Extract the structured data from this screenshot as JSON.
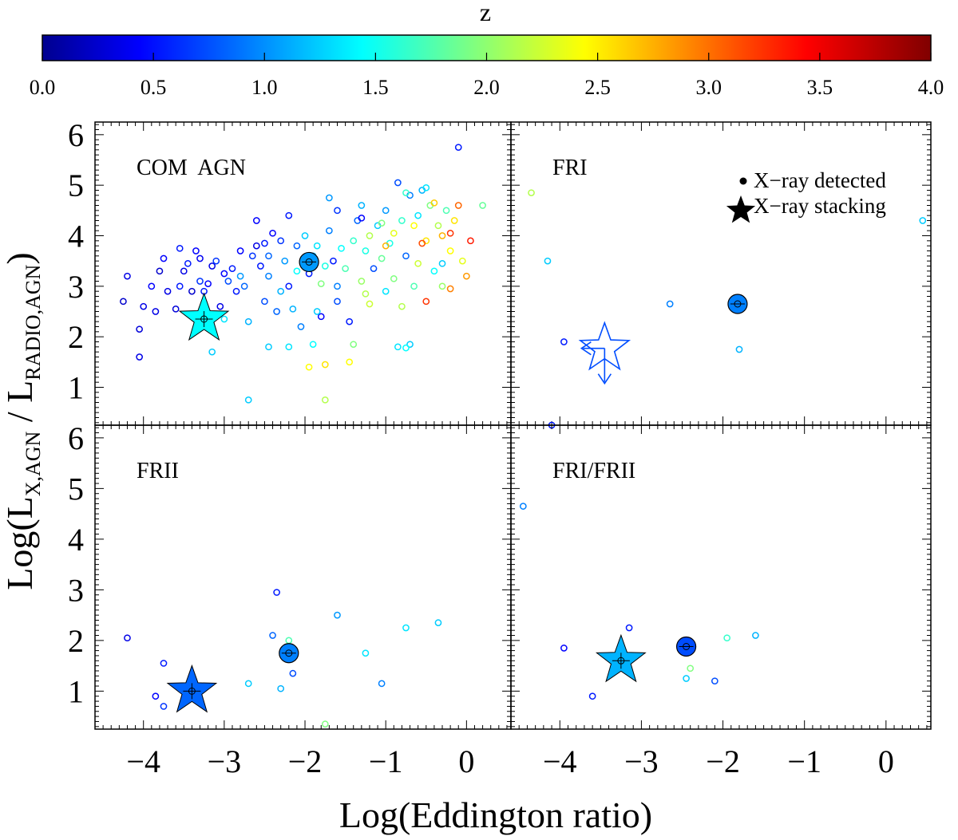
{
  "chart_data": {
    "type": "scatter",
    "colorbar": {
      "label": "z",
      "range": [
        0,
        4
      ],
      "ticks": [
        "0.0",
        "0.5",
        "1.0",
        "1.5",
        "2.0",
        "2.5",
        "3.0",
        "3.5",
        "4.0"
      ]
    },
    "xlabel": "Log(Eddington ratio)",
    "ylabel": "Log(L",
    "ylabel_sub1": "X,AGN",
    "ylabel_mid": " / L",
    "ylabel_sub2": "RADIO,AGN",
    "ylabel_end": ")",
    "xlim": [
      -4.6,
      0.55
    ],
    "ylim": [
      0.25,
      6.25
    ],
    "x_ticks": [
      "−4",
      "−3",
      "−2",
      "−1",
      "0"
    ],
    "y_ticks": [
      "1",
      "2",
      "3",
      "4",
      "5",
      "6"
    ],
    "legend": {
      "position": "top-right of FRI panel",
      "detected_label": "X−ray detected",
      "stacking_label": "X−ray stacking"
    },
    "panels": [
      {
        "name": "COM  AGN",
        "points": [
          [
            -4.2,
            3.2,
            0.4
          ],
          [
            -4.25,
            2.7,
            0.3
          ],
          [
            -4.0,
            2.6,
            0.4
          ],
          [
            -4.05,
            2.15,
            0.35
          ],
          [
            -4.05,
            1.6,
            0.4
          ],
          [
            -3.9,
            3.0,
            0.5
          ],
          [
            -3.85,
            2.5,
            0.4
          ],
          [
            -3.8,
            3.3,
            0.3
          ],
          [
            -3.75,
            3.55,
            0.5
          ],
          [
            -3.7,
            2.9,
            0.4
          ],
          [
            -3.6,
            2.55,
            0.35
          ],
          [
            -3.55,
            3.0,
            0.6
          ],
          [
            -3.5,
            3.3,
            0.4
          ],
          [
            -3.45,
            3.45,
            0.6
          ],
          [
            -3.4,
            2.9,
            0.3
          ],
          [
            -3.35,
            3.7,
            0.5
          ],
          [
            -3.3,
            3.55,
            0.45
          ],
          [
            -3.25,
            2.9,
            0.6
          ],
          [
            -3.2,
            3.05,
            0.5
          ],
          [
            -3.15,
            3.4,
            0.4
          ],
          [
            -3.1,
            3.5,
            0.7
          ],
          [
            -3.05,
            2.6,
            0.4
          ],
          [
            -3.0,
            3.25,
            0.5
          ],
          [
            -2.95,
            3.1,
            0.8
          ],
          [
            -2.9,
            3.35,
            0.6
          ],
          [
            -2.85,
            2.9,
            0.6
          ],
          [
            -2.8,
            3.7,
            0.5
          ],
          [
            -2.75,
            3.0,
            0.9
          ],
          [
            -2.7,
            2.3,
            1.2
          ],
          [
            -2.7,
            0.75,
            1.3
          ],
          [
            -2.65,
            3.6,
            0.7
          ],
          [
            -2.6,
            4.3,
            0.5
          ],
          [
            -2.55,
            3.4,
            0.6
          ],
          [
            -2.5,
            2.7,
            0.8
          ],
          [
            -2.5,
            3.85,
            0.6
          ],
          [
            -2.45,
            3.2,
            1.0
          ],
          [
            -2.4,
            4.05,
            0.5
          ],
          [
            -2.35,
            2.5,
            0.9
          ],
          [
            -2.3,
            3.9,
            0.7
          ],
          [
            -2.25,
            3.5,
            1.1
          ],
          [
            -2.2,
            3.0,
            0.6
          ],
          [
            -2.2,
            4.4,
            0.6
          ],
          [
            -2.15,
            2.55,
            1.2
          ],
          [
            -2.1,
            3.8,
            0.9
          ],
          [
            -2.05,
            2.2,
            1.0
          ],
          [
            -2.0,
            4.0,
            1.3
          ],
          [
            -1.95,
            3.25,
            0.6
          ],
          [
            -1.9,
            3.6,
            1.2
          ],
          [
            -1.9,
            1.85,
            1.5
          ],
          [
            -1.85,
            3.8,
            1.4
          ],
          [
            -1.8,
            2.4,
            0.5
          ],
          [
            -1.75,
            3.4,
            1.6
          ],
          [
            -1.7,
            4.1,
            1.0
          ],
          [
            -1.65,
            3.5,
            0.6
          ],
          [
            -1.6,
            2.7,
            0.8
          ],
          [
            -1.6,
            4.5,
            0.7
          ],
          [
            -1.55,
            3.75,
            1.5
          ],
          [
            -1.5,
            3.35,
            1.8
          ],
          [
            -1.45,
            2.3,
            0.6
          ],
          [
            -1.45,
            1.5,
            2.5
          ],
          [
            -1.4,
            3.9,
            1.7
          ],
          [
            -1.4,
            1.85,
            2.0
          ],
          [
            -1.35,
            4.3,
            0.9
          ],
          [
            -1.3,
            3.1,
            2.1
          ],
          [
            -1.3,
            4.6,
            1.2
          ],
          [
            -1.25,
            3.7,
            1.6
          ],
          [
            -1.2,
            2.65,
            2.3
          ],
          [
            -1.2,
            4.0,
            2.2
          ],
          [
            -1.15,
            3.35,
            0.8
          ],
          [
            -1.1,
            4.2,
            1.3
          ],
          [
            -1.05,
            3.55,
            1.9
          ],
          [
            -1.0,
            4.5,
            1.1
          ],
          [
            -1.0,
            2.9,
            1.4
          ],
          [
            -0.95,
            3.85,
            1.6
          ],
          [
            -0.9,
            4.05,
            2.4
          ],
          [
            -0.9,
            3.15,
            2.0
          ],
          [
            -0.85,
            5.05,
            0.8
          ],
          [
            -0.8,
            4.3,
            1.7
          ],
          [
            -0.8,
            2.6,
            2.2
          ],
          [
            -0.75,
            3.6,
            0.9
          ],
          [
            -0.7,
            1.85,
            1.3
          ],
          [
            -0.7,
            4.8,
            1.0
          ],
          [
            -0.65,
            3.0,
            1.8
          ],
          [
            -0.6,
            4.4,
            1.4
          ],
          [
            -0.6,
            3.45,
            2.3
          ],
          [
            -0.55,
            4.9,
            1.2
          ],
          [
            -0.5,
            3.9,
            2.6
          ],
          [
            -0.5,
            2.7,
            3.3
          ],
          [
            -0.45,
            4.6,
            2.0
          ],
          [
            -0.4,
            3.3,
            1.5
          ],
          [
            -0.35,
            4.2,
            2.2
          ],
          [
            -0.3,
            3.0,
            2.1
          ],
          [
            -0.3,
            4.0,
            2.8
          ],
          [
            -0.25,
            4.5,
            1.8
          ],
          [
            -0.2,
            3.7,
            2.5
          ],
          [
            -0.2,
            2.95,
            3.0
          ],
          [
            -0.15,
            4.3,
            2.6
          ],
          [
            -0.1,
            4.6,
            3.1
          ],
          [
            -0.1,
            5.75,
            0.6
          ],
          [
            -0.05,
            3.5,
            2.4
          ],
          [
            0.0,
            3.2,
            2.9
          ],
          [
            0.05,
            3.9,
            3.4
          ],
          [
            0.2,
            4.6,
            1.9
          ],
          [
            -0.55,
            3.85,
            3.2
          ],
          [
            -0.4,
            4.65,
            2.7
          ],
          [
            -0.2,
            4.05,
            3.3
          ],
          [
            -1.7,
            4.75,
            1.1
          ],
          [
            -2.8,
            3.2,
            1.1
          ],
          [
            -3.0,
            2.35,
            1.4
          ],
          [
            -3.15,
            1.7,
            1.3
          ],
          [
            -2.3,
            2.9,
            1.2
          ],
          [
            -1.85,
            2.5,
            1.3
          ],
          [
            -1.6,
            3.0,
            1.0
          ],
          [
            -2.1,
            3.3,
            1.5
          ],
          [
            -1.8,
            3.05,
            2.0
          ],
          [
            -1.75,
            0.75,
            2.2
          ],
          [
            -1.75,
            1.45,
            2.6
          ],
          [
            -1.95,
            1.4,
            2.5
          ],
          [
            -2.45,
            3.6,
            0.9
          ],
          [
            -2.6,
            3.8,
            0.4
          ],
          [
            -3.3,
            3.1,
            0.7
          ],
          [
            -3.55,
            3.75,
            0.6
          ],
          [
            -1.3,
            4.35,
            0.5
          ],
          [
            -1.05,
            4.25,
            2.0
          ],
          [
            -0.75,
            4.85,
            1.7
          ],
          [
            -2.0,
            3.55,
            1.7
          ],
          [
            -1.25,
            2.85,
            2.2
          ],
          [
            -1.0,
            3.8,
            2.8
          ],
          [
            -0.65,
            4.2,
            2.5
          ],
          [
            -0.3,
            3.45,
            1.3
          ],
          [
            -0.85,
            1.8,
            1.4
          ],
          [
            -2.2,
            1.8,
            1.4
          ],
          [
            -0.75,
            1.78,
            1.5
          ],
          [
            -2.45,
            1.8,
            1.3
          ],
          [
            -0.5,
            4.95,
            1.4
          ]
        ],
        "mean_detected": {
          "x": -1.95,
          "y": 3.48,
          "z": 1.1
        },
        "stack": {
          "x": -3.25,
          "y": 2.35,
          "z": 1.5,
          "upper_limit": false
        }
      },
      {
        "name": "FRI",
        "points": [
          [
            -4.35,
            4.85,
            2.2
          ],
          [
            -4.15,
            3.5,
            1.3
          ],
          [
            -3.95,
            1.9,
            0.6
          ],
          [
            -2.65,
            2.65,
            1.0
          ],
          [
            -1.8,
            1.75,
            1.2
          ],
          [
            -4.1,
            0.25,
            0.6
          ],
          [
            0.45,
            4.3,
            1.3
          ]
        ],
        "mean_detected": {
          "x": -1.82,
          "y": 2.65,
          "z": 1.0
        },
        "stack": {
          "x": -3.5,
          "y": 1.55,
          "z": 0.8,
          "upper_limit": true
        }
      },
      {
        "name": "FRII",
        "points": [
          [
            -4.2,
            2.05,
            0.4
          ],
          [
            -3.75,
            1.55,
            0.6
          ],
          [
            -3.85,
            0.9,
            0.5
          ],
          [
            -3.75,
            0.7,
            0.7
          ],
          [
            -2.35,
            2.95,
            0.6
          ],
          [
            -2.4,
            2.1,
            0.9
          ],
          [
            -2.15,
            1.35,
            0.8
          ],
          [
            -2.2,
            2.0,
            1.8
          ],
          [
            -2.7,
            1.15,
            1.3
          ],
          [
            -2.3,
            1.05,
            1.2
          ],
          [
            -1.6,
            2.5,
            1.1
          ],
          [
            -1.25,
            1.75,
            1.4
          ],
          [
            -1.05,
            1.15,
            1.0
          ],
          [
            -0.75,
            2.25,
            1.4
          ],
          [
            -0.35,
            2.35,
            1.3
          ],
          [
            -1.75,
            0.35,
            2.0
          ],
          [
            -2.45,
            0.1,
            0.8
          ]
        ],
        "mean_detected": {
          "x": -2.2,
          "y": 1.75,
          "z": 1.0
        },
        "stack": {
          "x": -3.4,
          "y": 1.0,
          "z": 0.9,
          "upper_limit": false
        }
      },
      {
        "name": "FRI/FRII",
        "points": [
          [
            -4.45,
            4.65,
            1.0
          ],
          [
            -3.95,
            1.85,
            0.5
          ],
          [
            -3.6,
            0.9,
            0.6
          ],
          [
            -3.15,
            2.25,
            0.6
          ],
          [
            -2.45,
            1.25,
            1.3
          ],
          [
            -2.4,
            1.45,
            2.0
          ],
          [
            -1.95,
            2.05,
            1.7
          ],
          [
            -1.6,
            2.1,
            1.2
          ],
          [
            -2.1,
            1.2,
            0.8
          ]
        ],
        "mean_detected": {
          "x": -2.45,
          "y": 1.88,
          "z": 0.8
        },
        "stack": {
          "x": -3.25,
          "y": 1.6,
          "z": 1.2,
          "upper_limit": false
        }
      }
    ]
  }
}
